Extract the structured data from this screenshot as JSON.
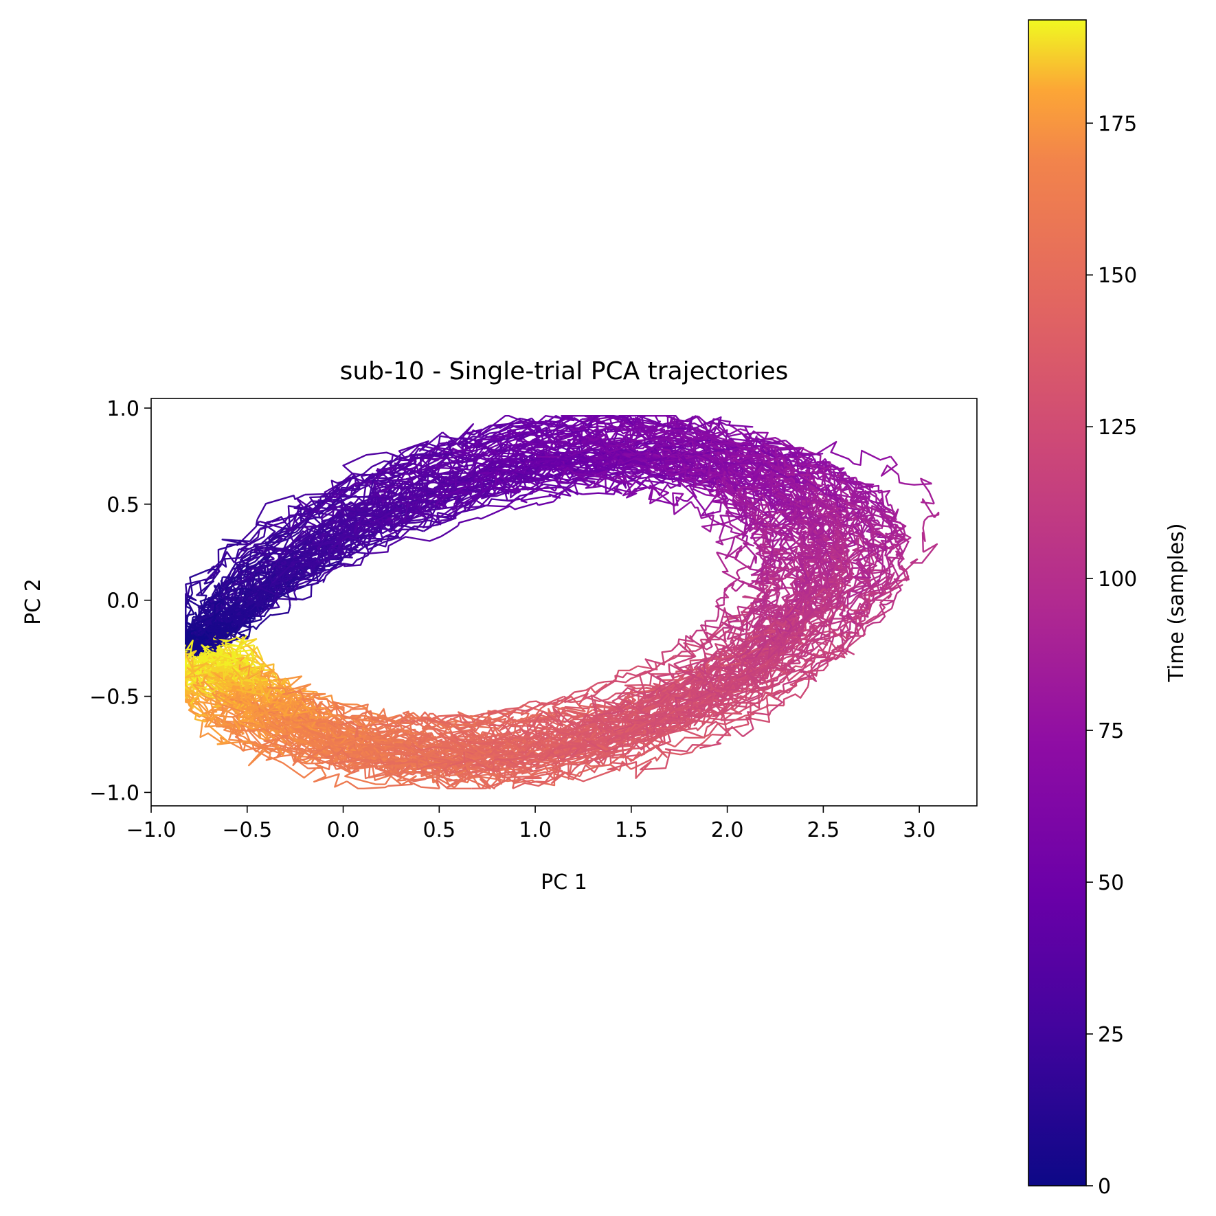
{
  "chart_data": {
    "type": "line",
    "title": "sub-10 - Single-trial PCA trajectories",
    "xlabel": "PC 1",
    "ylabel": "PC 2",
    "xlim": [
      -1.0,
      3.3
    ],
    "ylim": [
      -1.07,
      1.05
    ],
    "xticks": [
      -1.0,
      -0.5,
      0.0,
      0.5,
      1.0,
      1.5,
      2.0,
      2.5,
      3.0
    ],
    "yticks": [
      -1.0,
      -0.5,
      0.0,
      0.5,
      1.0
    ],
    "xtick_labels": [
      "−1.0",
      "−0.5",
      "0.0",
      "0.5",
      "1.0",
      "1.5",
      "2.0",
      "2.5",
      "3.0"
    ],
    "ytick_labels": [
      "−1.0",
      "−0.5",
      "0.0",
      "0.5",
      "1.0"
    ],
    "grid": false,
    "legend": "none",
    "colormap": "plasma",
    "colorbar": {
      "label": "Time (samples)",
      "range": [
        0,
        192
      ],
      "ticks": [
        0,
        25,
        50,
        75,
        100,
        125,
        150,
        175
      ],
      "tick_labels": [
        "0",
        "25",
        "50",
        "75",
        "100",
        "125",
        "150",
        "175"
      ]
    },
    "trajectory_shape": {
      "start": [
        -0.8,
        -0.24
      ],
      "center": [
        1.0,
        -0.02
      ],
      "semi_axis_x": 1.75,
      "semi_axis_y": 0.9,
      "tilt_deg": 12,
      "n_trials": 70,
      "n_samples": 192
    }
  }
}
